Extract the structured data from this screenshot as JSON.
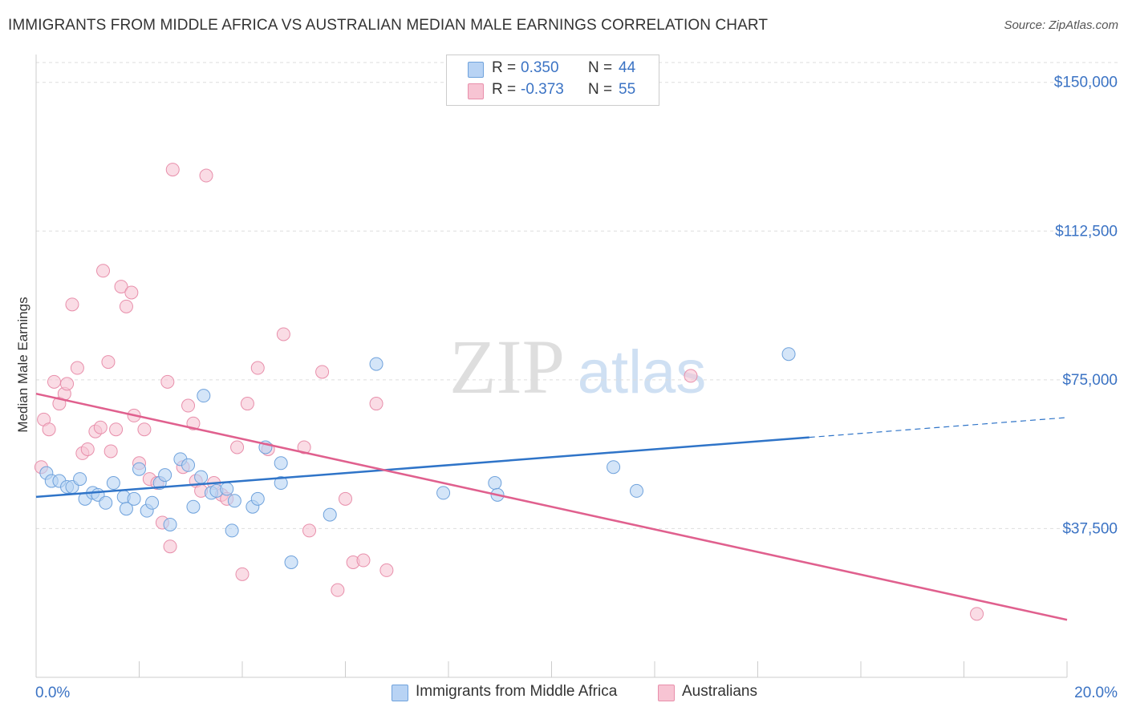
{
  "title": "IMMIGRANTS FROM MIDDLE AFRICA VS AUSTRALIAN MEDIAN MALE EARNINGS CORRELATION CHART",
  "source": "Source: ZipAtlas.com",
  "watermark": {
    "zip": "ZIP",
    "atlas": "atlas"
  },
  "stats": [
    {
      "r_label": "R =",
      "r_value": "0.350",
      "n_label": "N =",
      "n_value": "44"
    },
    {
      "r_label": "R =",
      "r_value": "-0.373",
      "n_label": "N =",
      "n_value": "55"
    }
  ],
  "legend": [
    {
      "label": "Immigrants from Middle Africa"
    },
    {
      "label": "Australians"
    }
  ],
  "chart_data": {
    "type": "scatter",
    "title": "IMMIGRANTS FROM MIDDLE AFRICA VS AUSTRALIAN MEDIAN MALE EARNINGS CORRELATION CHART",
    "xlabel": "",
    "ylabel": "Median Male Earnings",
    "xlim": [
      0,
      20
    ],
    "ylim": [
      0,
      155000
    ],
    "x_tick_labels": [
      "0.0%",
      "20.0%"
    ],
    "y_ticks": [
      37500,
      75000,
      112500,
      150000
    ],
    "y_tick_labels": [
      "$37,500",
      "$75,000",
      "$112,500",
      "$150,000"
    ],
    "grid": "horizontal dashed",
    "legend_position": "bottom-center",
    "colors": {
      "blue_fill": "#b8d3f4",
      "blue_stroke": "#6fa2dc",
      "blue_line": "#2f74c8",
      "pink_fill": "#f7c4d3",
      "pink_stroke": "#e88fab",
      "pink_line": "#e0608e",
      "tick_label": "#3b73c4"
    },
    "series": [
      {
        "name": "Immigrants from Middle Africa",
        "color": "#6fa2dc",
        "trend": {
          "x": [
            0,
            15
          ],
          "y": [
            45500,
            60500
          ],
          "dashed_to_x": 20,
          "dashed_to_y": 65500
        },
        "points": [
          {
            "x": 0.2,
            "y": 51500
          },
          {
            "x": 0.3,
            "y": 49500
          },
          {
            "x": 0.45,
            "y": 49500
          },
          {
            "x": 0.6,
            "y": 48000
          },
          {
            "x": 0.7,
            "y": 48000
          },
          {
            "x": 0.85,
            "y": 50000
          },
          {
            "x": 0.95,
            "y": 45000
          },
          {
            "x": 1.1,
            "y": 46500
          },
          {
            "x": 1.2,
            "y": 46000
          },
          {
            "x": 1.35,
            "y": 44000
          },
          {
            "x": 1.5,
            "y": 49000
          },
          {
            "x": 1.7,
            "y": 45500
          },
          {
            "x": 1.75,
            "y": 42500
          },
          {
            "x": 1.9,
            "y": 45000
          },
          {
            "x": 2.0,
            "y": 52500
          },
          {
            "x": 2.15,
            "y": 42000
          },
          {
            "x": 2.25,
            "y": 44000
          },
          {
            "x": 2.4,
            "y": 49000
          },
          {
            "x": 2.5,
            "y": 51000
          },
          {
            "x": 2.6,
            "y": 38500
          },
          {
            "x": 2.8,
            "y": 55000
          },
          {
            "x": 2.95,
            "y": 53500
          },
          {
            "x": 3.05,
            "y": 43000
          },
          {
            "x": 3.2,
            "y": 50500
          },
          {
            "x": 3.25,
            "y": 71000
          },
          {
            "x": 3.4,
            "y": 46500
          },
          {
            "x": 3.5,
            "y": 47000
          },
          {
            "x": 3.7,
            "y": 47500
          },
          {
            "x": 3.8,
            "y": 37000
          },
          {
            "x": 3.85,
            "y": 44500
          },
          {
            "x": 4.2,
            "y": 43000
          },
          {
            "x": 4.3,
            "y": 45000
          },
          {
            "x": 4.45,
            "y": 58000
          },
          {
            "x": 4.75,
            "y": 54000
          },
          {
            "x": 4.75,
            "y": 49000
          },
          {
            "x": 4.95,
            "y": 29000
          },
          {
            "x": 5.7,
            "y": 41000
          },
          {
            "x": 6.6,
            "y": 79000
          },
          {
            "x": 7.9,
            "y": 46500
          },
          {
            "x": 8.9,
            "y": 49000
          },
          {
            "x": 8.95,
            "y": 46000
          },
          {
            "x": 11.2,
            "y": 53000
          },
          {
            "x": 11.65,
            "y": 47000
          },
          {
            "x": 14.6,
            "y": 81500
          }
        ]
      },
      {
        "name": "Australians",
        "color": "#e88fab",
        "trend": {
          "x": [
            0,
            20
          ],
          "y": [
            71500,
            14500
          ]
        },
        "points": [
          {
            "x": 0.1,
            "y": 53000
          },
          {
            "x": 0.15,
            "y": 65000
          },
          {
            "x": 0.25,
            "y": 62500
          },
          {
            "x": 0.35,
            "y": 74500
          },
          {
            "x": 0.45,
            "y": 69000
          },
          {
            "x": 0.55,
            "y": 71500
          },
          {
            "x": 0.6,
            "y": 74000
          },
          {
            "x": 0.7,
            "y": 94000
          },
          {
            "x": 0.8,
            "y": 78000
          },
          {
            "x": 0.9,
            "y": 56500
          },
          {
            "x": 1.0,
            "y": 57500
          },
          {
            "x": 1.15,
            "y": 62000
          },
          {
            "x": 1.25,
            "y": 63000
          },
          {
            "x": 1.3,
            "y": 102500
          },
          {
            "x": 1.4,
            "y": 79500
          },
          {
            "x": 1.45,
            "y": 57000
          },
          {
            "x": 1.55,
            "y": 62500
          },
          {
            "x": 1.65,
            "y": 98500
          },
          {
            "x": 1.75,
            "y": 93500
          },
          {
            "x": 1.85,
            "y": 97000
          },
          {
            "x": 1.9,
            "y": 66000
          },
          {
            "x": 2.0,
            "y": 54000
          },
          {
            "x": 2.1,
            "y": 62500
          },
          {
            "x": 2.2,
            "y": 50000
          },
          {
            "x": 2.35,
            "y": 49000
          },
          {
            "x": 2.45,
            "y": 39000
          },
          {
            "x": 2.55,
            "y": 74500
          },
          {
            "x": 2.6,
            "y": 33000
          },
          {
            "x": 2.65,
            "y": 128000
          },
          {
            "x": 2.85,
            "y": 53000
          },
          {
            "x": 2.95,
            "y": 68500
          },
          {
            "x": 3.05,
            "y": 64000
          },
          {
            "x": 3.1,
            "y": 49500
          },
          {
            "x": 3.2,
            "y": 47000
          },
          {
            "x": 3.3,
            "y": 126500
          },
          {
            "x": 3.45,
            "y": 49000
          },
          {
            "x": 3.6,
            "y": 46000
          },
          {
            "x": 3.7,
            "y": 45000
          },
          {
            "x": 3.9,
            "y": 58000
          },
          {
            "x": 4.0,
            "y": 26000
          },
          {
            "x": 4.1,
            "y": 69000
          },
          {
            "x": 4.3,
            "y": 78000
          },
          {
            "x": 4.5,
            "y": 57500
          },
          {
            "x": 4.8,
            "y": 86500
          },
          {
            "x": 5.2,
            "y": 58000
          },
          {
            "x": 5.3,
            "y": 37000
          },
          {
            "x": 5.55,
            "y": 77000
          },
          {
            "x": 5.85,
            "y": 22000
          },
          {
            "x": 6.0,
            "y": 45000
          },
          {
            "x": 6.15,
            "y": 29000
          },
          {
            "x": 6.35,
            "y": 29500
          },
          {
            "x": 6.6,
            "y": 69000
          },
          {
            "x": 6.8,
            "y": 27000
          },
          {
            "x": 12.7,
            "y": 76000
          },
          {
            "x": 18.25,
            "y": 16000
          }
        ]
      }
    ]
  }
}
